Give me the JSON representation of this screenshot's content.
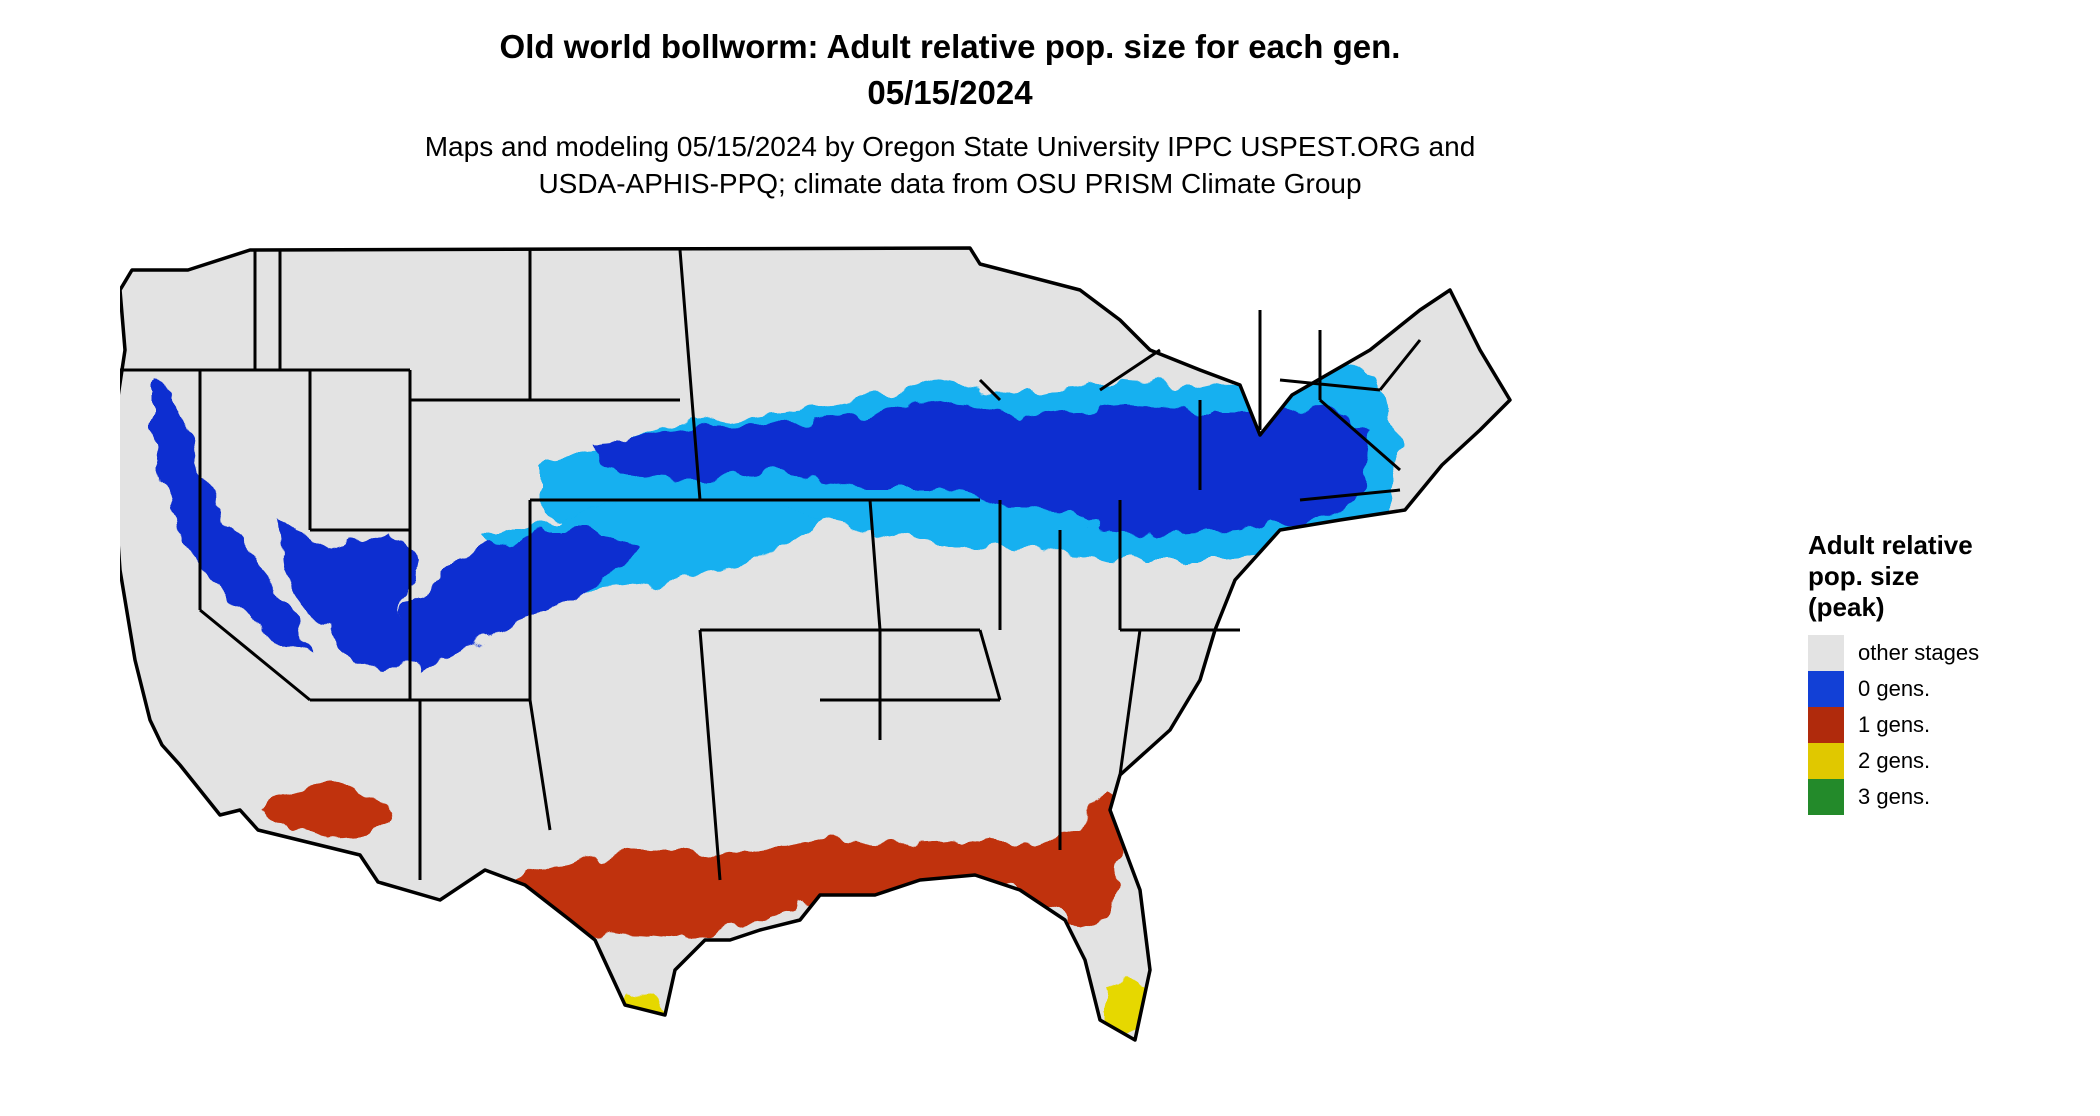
{
  "title": {
    "line1": "Old world bollworm: Adult relative pop. size for each gen.",
    "line2": "05/15/2024"
  },
  "subtitle": {
    "line1": "Maps and modeling 05/15/2024 by Oregon State University IPPC USPEST.ORG and",
    "line2": "USDA-APHIS-PPQ; climate data from OSU PRISM Climate Group"
  },
  "legend": {
    "title_lines": [
      "Adult relative",
      "pop. size",
      "(peak)"
    ],
    "entries": [
      {
        "label": "other stages",
        "color": "#e3e3e3"
      },
      {
        "label": "0 gens.",
        "color": "#1240d6"
      },
      {
        "label": "1 gens.",
        "color": "#b02a0c"
      },
      {
        "label": "2 gens.",
        "color": "#e0c800"
      },
      {
        "label": "3 gens.",
        "color": "#238a2a"
      }
    ]
  },
  "colors": {
    "land": "#e3e3e3",
    "border": "#000000",
    "zero_dark": "#0a2fd0",
    "zero_light": "#12b0f0",
    "one_gen": "#c0300c",
    "two_gen": "#e6d800"
  }
}
